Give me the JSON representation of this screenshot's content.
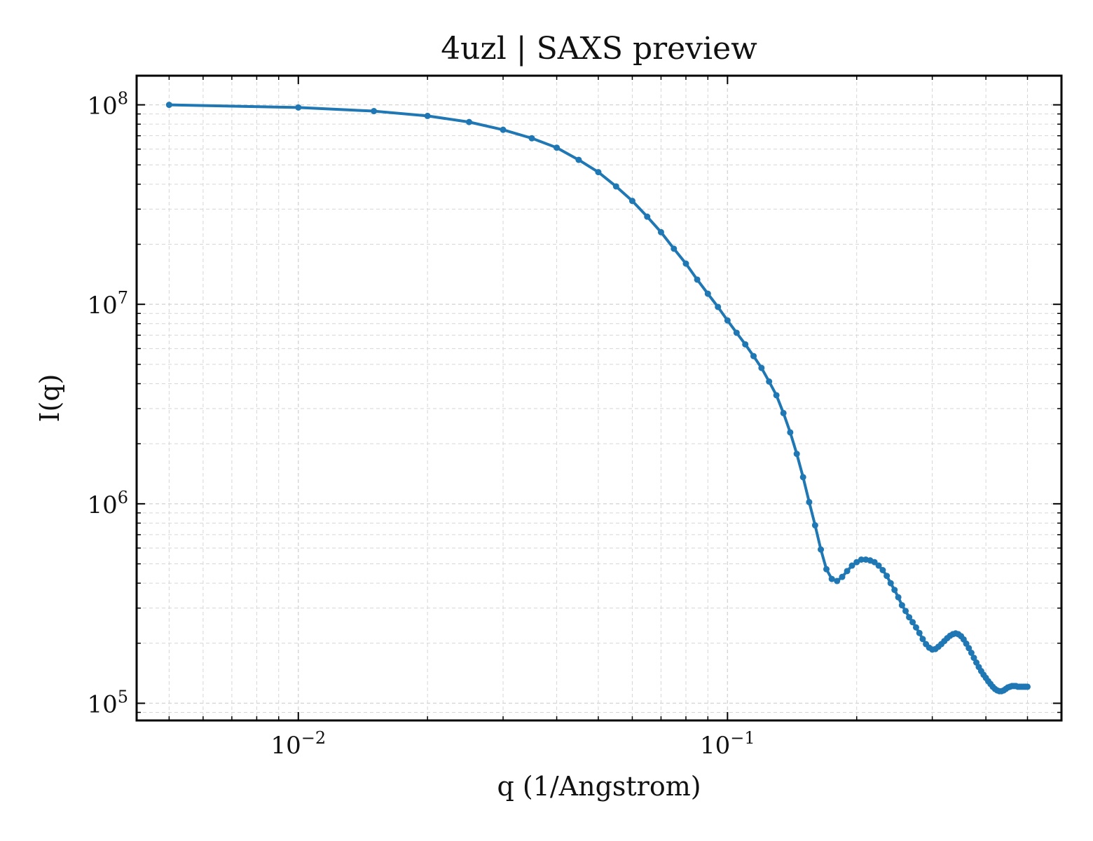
{
  "chart_data": {
    "type": "line",
    "title": "4uzl | SAXS preview",
    "xlabel": "q (1/Angstrom)",
    "ylabel": "I(q)",
    "xscale": "log",
    "yscale": "log",
    "xlim": [
      0.0042,
      0.6
    ],
    "ylim": [
      82000,
      140000000
    ],
    "grid": true,
    "legend": "none",
    "x_ticks": [
      {
        "value": 0.01,
        "base": "10",
        "exp": "−2"
      },
      {
        "value": 0.1,
        "base": "10",
        "exp": "−1"
      }
    ],
    "y_ticks": [
      {
        "value": 100000,
        "base": "10",
        "exp": "5"
      },
      {
        "value": 1000000,
        "base": "10",
        "exp": "6"
      },
      {
        "value": 10000000,
        "base": "10",
        "exp": "7"
      },
      {
        "value": 100000000,
        "base": "10",
        "exp": "8"
      }
    ],
    "series": [
      {
        "color": "#1f77b4",
        "x": [
          0.005,
          0.01,
          0.015,
          0.02,
          0.025,
          0.03,
          0.035,
          0.04,
          0.045,
          0.05,
          0.055,
          0.06,
          0.065,
          0.07,
          0.075,
          0.08,
          0.085,
          0.09,
          0.095,
          0.1,
          0.105,
          0.11,
          0.115,
          0.12,
          0.125,
          0.13,
          0.135,
          0.14,
          0.145,
          0.15,
          0.155,
          0.16,
          0.165,
          0.17,
          0.175,
          0.18,
          0.185,
          0.19,
          0.195,
          0.2,
          0.205,
          0.21,
          0.215,
          0.22,
          0.225,
          0.23,
          0.235,
          0.24,
          0.245,
          0.25,
          0.255,
          0.26,
          0.265,
          0.27,
          0.275,
          0.28,
          0.285,
          0.29,
          0.295,
          0.3,
          0.305,
          0.31,
          0.315,
          0.32,
          0.325,
          0.33,
          0.335,
          0.34,
          0.345,
          0.35,
          0.355,
          0.36,
          0.365,
          0.37,
          0.375,
          0.38,
          0.385,
          0.39,
          0.395,
          0.4,
          0.405,
          0.41,
          0.415,
          0.42,
          0.425,
          0.43,
          0.435,
          0.44,
          0.445,
          0.45,
          0.455,
          0.46,
          0.465,
          0.47,
          0.475,
          0.48,
          0.485,
          0.49,
          0.495,
          0.5
        ],
        "y": [
          100000000,
          97000000,
          93000000,
          88000000,
          82000000,
          75000000,
          68000000,
          61000000,
          53000000,
          46000000,
          39000000,
          33000000,
          27500000,
          23000000,
          19000000,
          16000000,
          13300000,
          11300000,
          9700000,
          8300000,
          7200000,
          6300000,
          5500000,
          4800000,
          4100000,
          3500000,
          2850000,
          2280000,
          1780000,
          1360000,
          1020000,
          780000,
          590000,
          470000,
          420000,
          410000,
          430000,
          460000,
          490000,
          510000,
          525000,
          525000,
          520000,
          510000,
          490000,
          465000,
          435000,
          400000,
          370000,
          340000,
          310000,
          290000,
          270000,
          255000,
          240000,
          225000,
          210000,
          198000,
          190000,
          186000,
          187000,
          192000,
          198000,
          205000,
          212000,
          218000,
          222000,
          224000,
          222000,
          217000,
          209000,
          199000,
          189000,
          179000,
          169000,
          160000,
          152000,
          145000,
          139000,
          134000,
          129000,
          125000,
          121000,
          118000,
          116000,
          115000,
          115000,
          116000,
          118000,
          120000,
          121000,
          122000,
          122000,
          122000,
          121000,
          121000,
          121000,
          121000,
          121000,
          121000
        ]
      }
    ]
  }
}
